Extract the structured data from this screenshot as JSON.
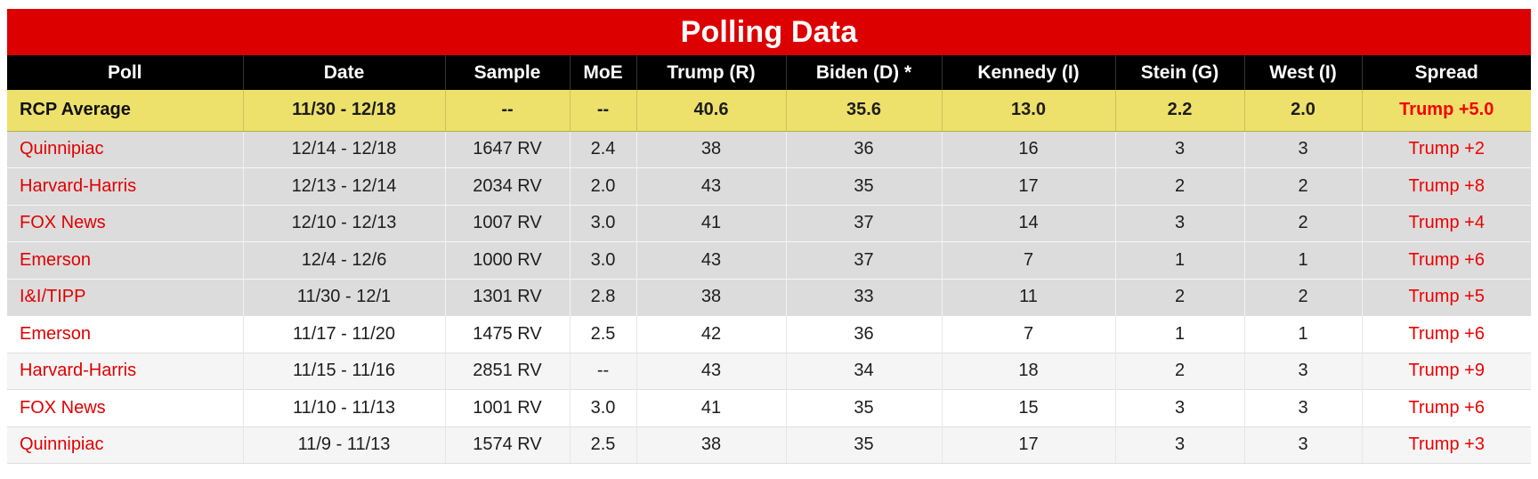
{
  "chart_data": {
    "type": "table",
    "title": "Polling Data",
    "columns": [
      {
        "key": "poll",
        "label": "Poll"
      },
      {
        "key": "date",
        "label": "Date"
      },
      {
        "key": "sample",
        "label": "Sample"
      },
      {
        "key": "moe",
        "label": "MoE"
      },
      {
        "key": "trump",
        "label": "Trump (R)"
      },
      {
        "key": "biden",
        "label": "Biden (D) *"
      },
      {
        "key": "kennedy",
        "label": "Kennedy (I)"
      },
      {
        "key": "stein",
        "label": "Stein (G)"
      },
      {
        "key": "west",
        "label": "West (I)"
      },
      {
        "key": "spread",
        "label": "Spread"
      }
    ],
    "average_row": {
      "poll": "RCP Average",
      "date": "11/30 - 12/18",
      "sample": "--",
      "moe": "--",
      "trump": "40.6",
      "biden": "35.6",
      "kennedy": "13.0",
      "stein": "2.2",
      "west": "2.0",
      "spread": "Trump +5.0"
    },
    "rows": [
      {
        "poll": "Quinnipiac",
        "date": "12/14 - 12/18",
        "sample": "1647 RV",
        "moe": "2.4",
        "trump": "38",
        "biden": "36",
        "kennedy": "16",
        "stein": "3",
        "west": "3",
        "spread": "Trump +2",
        "highlight": true
      },
      {
        "poll": "Harvard-Harris",
        "date": "12/13 - 12/14",
        "sample": "2034 RV",
        "moe": "2.0",
        "trump": "43",
        "biden": "35",
        "kennedy": "17",
        "stein": "2",
        "west": "2",
        "spread": "Trump +8",
        "highlight": true
      },
      {
        "poll": "FOX News",
        "date": "12/10 - 12/13",
        "sample": "1007 RV",
        "moe": "3.0",
        "trump": "41",
        "biden": "37",
        "kennedy": "14",
        "stein": "3",
        "west": "2",
        "spread": "Trump +4",
        "highlight": true
      },
      {
        "poll": "Emerson",
        "date": "12/4 - 12/6",
        "sample": "1000 RV",
        "moe": "3.0",
        "trump": "43",
        "biden": "37",
        "kennedy": "7",
        "stein": "1",
        "west": "1",
        "spread": "Trump +6",
        "highlight": true
      },
      {
        "poll": "I&I/TIPP",
        "date": "11/30 - 12/1",
        "sample": "1301 RV",
        "moe": "2.8",
        "trump": "38",
        "biden": "33",
        "kennedy": "11",
        "stein": "2",
        "west": "2",
        "spread": "Trump +5",
        "highlight": true
      },
      {
        "poll": "Emerson",
        "date": "11/17 - 11/20",
        "sample": "1475 RV",
        "moe": "2.5",
        "trump": "42",
        "biden": "36",
        "kennedy": "7",
        "stein": "1",
        "west": "1",
        "spread": "Trump +6",
        "highlight": false
      },
      {
        "poll": "Harvard-Harris",
        "date": "11/15 - 11/16",
        "sample": "2851 RV",
        "moe": "--",
        "trump": "43",
        "biden": "34",
        "kennedy": "18",
        "stein": "2",
        "west": "3",
        "spread": "Trump +9",
        "highlight": false
      },
      {
        "poll": "FOX News",
        "date": "11/10 - 11/13",
        "sample": "1001 RV",
        "moe": "3.0",
        "trump": "41",
        "biden": "35",
        "kennedy": "15",
        "stein": "3",
        "west": "3",
        "spread": "Trump +6",
        "highlight": false
      },
      {
        "poll": "Quinnipiac",
        "date": "11/9 - 11/13",
        "sample": "1574 RV",
        "moe": "2.5",
        "trump": "38",
        "biden": "35",
        "kennedy": "17",
        "stein": "3",
        "west": "3",
        "spread": "Trump +3",
        "highlight": false
      }
    ],
    "colors": {
      "banner_red": "#DD0000",
      "header_black": "#000000",
      "average_yellow": "#EDE16B",
      "highlight_gray": "#DCDCDC",
      "alt_row_gray": "#F5F5F5",
      "link_red": "#E00000"
    }
  }
}
